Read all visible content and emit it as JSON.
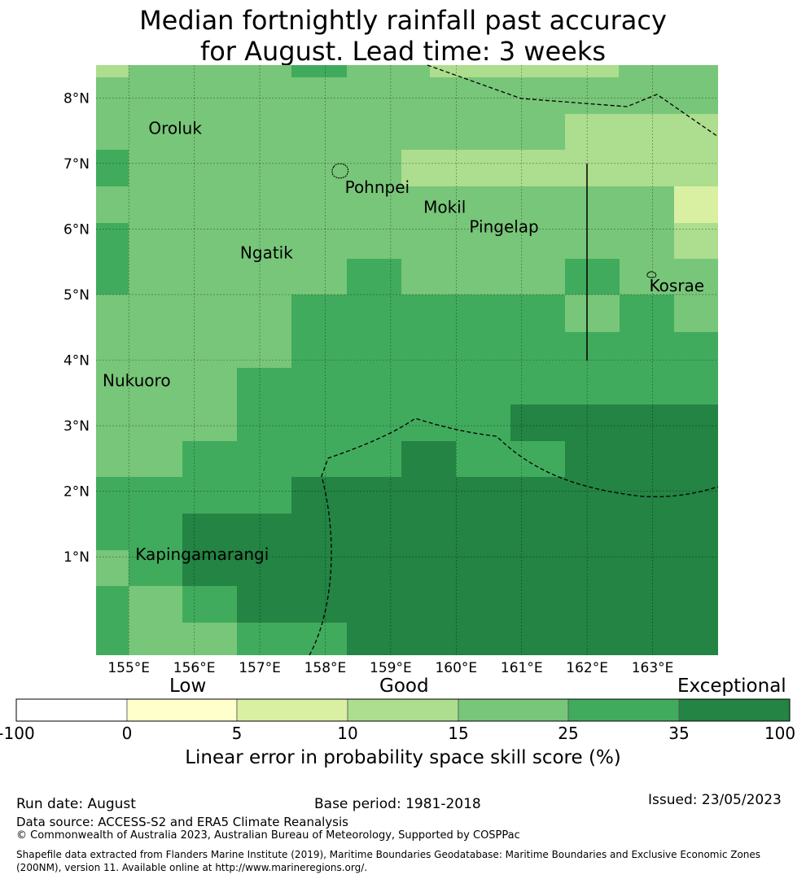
{
  "title_line1": "Median fortnightly rainfall past accuracy",
  "title_line2": "for August. Lead time: 3 weeks",
  "map": {
    "lon_range": [
      154.5,
      164.0
    ],
    "lat_range": [
      -0.5,
      8.5
    ],
    "x_ticks": [
      "155°E",
      "156°E",
      "157°E",
      "158°E",
      "159°E",
      "160°E",
      "161°E",
      "162°E",
      "163°E"
    ],
    "x_tick_values": [
      155,
      156,
      157,
      158,
      159,
      160,
      161,
      162,
      163
    ],
    "y_ticks": [
      "1°N",
      "2°N",
      "3°N",
      "4°N",
      "5°N",
      "6°N",
      "7°N",
      "8°N"
    ],
    "y_tick_values": [
      1,
      2,
      3,
      4,
      5,
      6,
      7,
      8
    ],
    "places": [
      {
        "name": "Oroluk",
        "lon": 155.3,
        "lat": 7.45
      },
      {
        "name": "Pohnpei",
        "lon": 158.3,
        "lat": 6.55
      },
      {
        "name": "Mokil",
        "lon": 159.5,
        "lat": 6.25
      },
      {
        "name": "Pingelap",
        "lon": 160.2,
        "lat": 5.95
      },
      {
        "name": "Ngatik",
        "lon": 156.7,
        "lat": 5.55
      },
      {
        "name": "Kosrae",
        "lon": 162.95,
        "lat": 5.05
      },
      {
        "name": "Nukuoro",
        "lon": 154.6,
        "lat": 3.6
      },
      {
        "name": "Kapingamarangi",
        "lon": 155.1,
        "lat": 0.95
      }
    ],
    "colors": [
      "#ffffff",
      "#ffffcc",
      "#d9f0a3",
      "#addd8e",
      "#78c679",
      "#41ab5d",
      "#238443"
    ]
  },
  "colorbar": {
    "categories": [
      "Low",
      "Good",
      "Exceptional"
    ],
    "ticks": [
      "-100",
      "0",
      "5",
      "10",
      "15",
      "25",
      "35",
      "100"
    ],
    "label": "Linear error in probability space skill score (%)"
  },
  "footer": {
    "run_date": "Run date: August",
    "base_period": "Base period: 1981-2018",
    "issued": "Issued: 23/05/2023",
    "data_source": "Data source: ACCESS-S2 and ERA5 Climate Reanalysis",
    "copyright": "© Commonwealth of Australia 2023, Australian Bureau of Meteorology, Supported by COSPPac",
    "shapefile": "Shapefile data extracted from Flanders Marine Institute (2019), Maritime Boundaries Geodatabase: Maritime Boundaries and Exclusive Economic Zones (200NM), version 11. Available online at http://www.marineregions.org/."
  }
}
